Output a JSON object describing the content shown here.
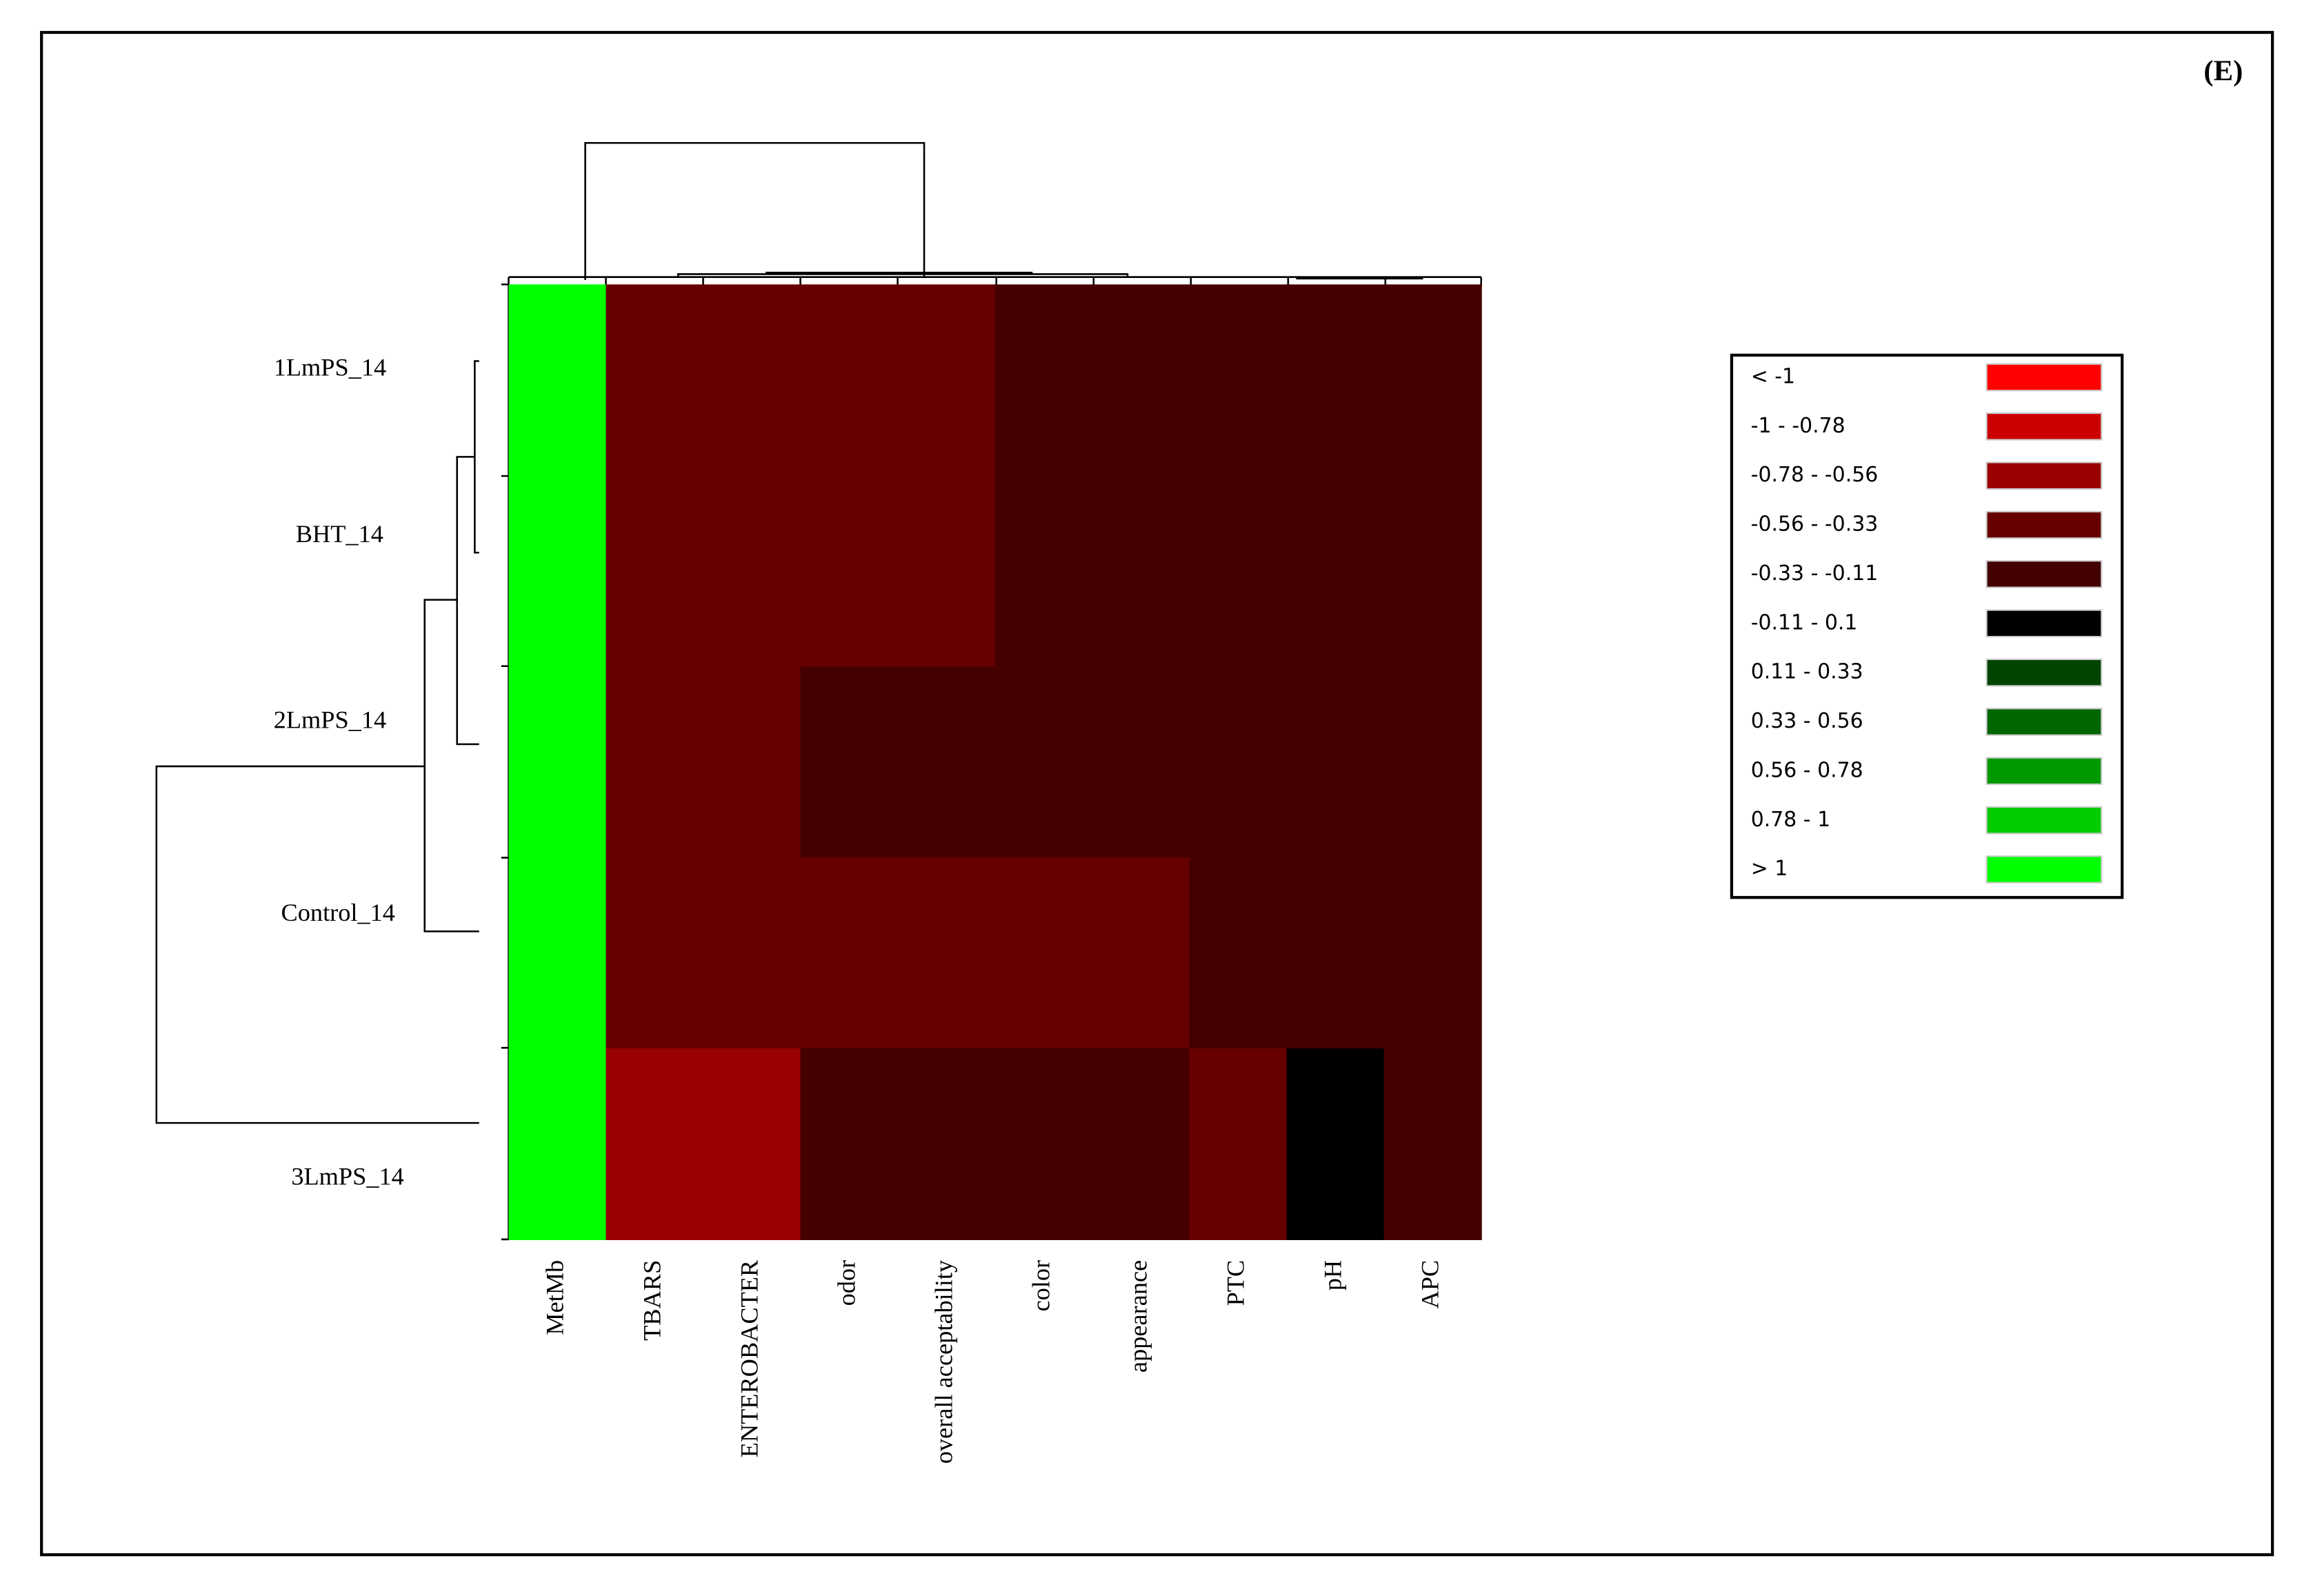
{
  "chart_data": {
    "type": "heatmap",
    "panel_label": "(E)",
    "rows": [
      "1LmPS_14",
      "BHT_14",
      "2LmPS_14",
      "Control_14",
      "3LmPS_14"
    ],
    "columns": [
      "MetMb",
      "TBARS",
      "ENTEROBACTER",
      "odor",
      "overall acceptability",
      "color",
      "appearance",
      "PTC",
      "pH",
      "APC"
    ],
    "values": [
      [
        1.2,
        -0.45,
        -0.45,
        -0.45,
        -0.45,
        -0.22,
        -0.22,
        -0.22,
        -0.22,
        -0.22
      ],
      [
        1.2,
        -0.45,
        -0.45,
        -0.45,
        -0.45,
        -0.22,
        -0.22,
        -0.22,
        -0.22,
        -0.22
      ],
      [
        1.2,
        -0.45,
        -0.45,
        -0.22,
        -0.22,
        -0.22,
        -0.22,
        -0.22,
        -0.22,
        -0.22
      ],
      [
        1.2,
        -0.45,
        -0.45,
        -0.45,
        -0.45,
        -0.45,
        -0.45,
        -0.22,
        -0.22,
        -0.22
      ],
      [
        1.2,
        -0.67,
        -0.67,
        -0.22,
        -0.22,
        -0.22,
        -0.22,
        -0.45,
        0,
        -0.22
      ]
    ],
    "legend": [
      {
        "label": "< -1",
        "color": "#ff0000",
        "range": [
          null,
          -1
        ]
      },
      {
        "label": "-1 - -0.78",
        "color": "#cc0000",
        "range": [
          -1,
          -0.78
        ]
      },
      {
        "label": "-0.78 - -0.56",
        "color": "#990000",
        "range": [
          -0.78,
          -0.56
        ]
      },
      {
        "label": "-0.56 - -0.33",
        "color": "#660000",
        "range": [
          -0.56,
          -0.33
        ]
      },
      {
        "label": "-0.33 - -0.11",
        "color": "#440000",
        "range": [
          -0.33,
          -0.11
        ]
      },
      {
        "label": "-0.11 - 0.1",
        "color": "#000000",
        "range": [
          -0.11,
          0.1
        ]
      },
      {
        "label": "0.11 - 0.33",
        "color": "#004400",
        "range": [
          0.1,
          0.33
        ]
      },
      {
        "label": "0.33 - 0.56",
        "color": "#006600",
        "range": [
          0.33,
          0.56
        ]
      },
      {
        "label": "0.56 - 0.78",
        "color": "#009900",
        "range": [
          0.56,
          0.78
        ]
      },
      {
        "label": "0.78 - 1",
        "color": "#00cc00",
        "range": [
          0.78,
          1
        ]
      },
      {
        "label": "> 1",
        "color": "#00ff00",
        "range": [
          1,
          null
        ]
      }
    ]
  }
}
